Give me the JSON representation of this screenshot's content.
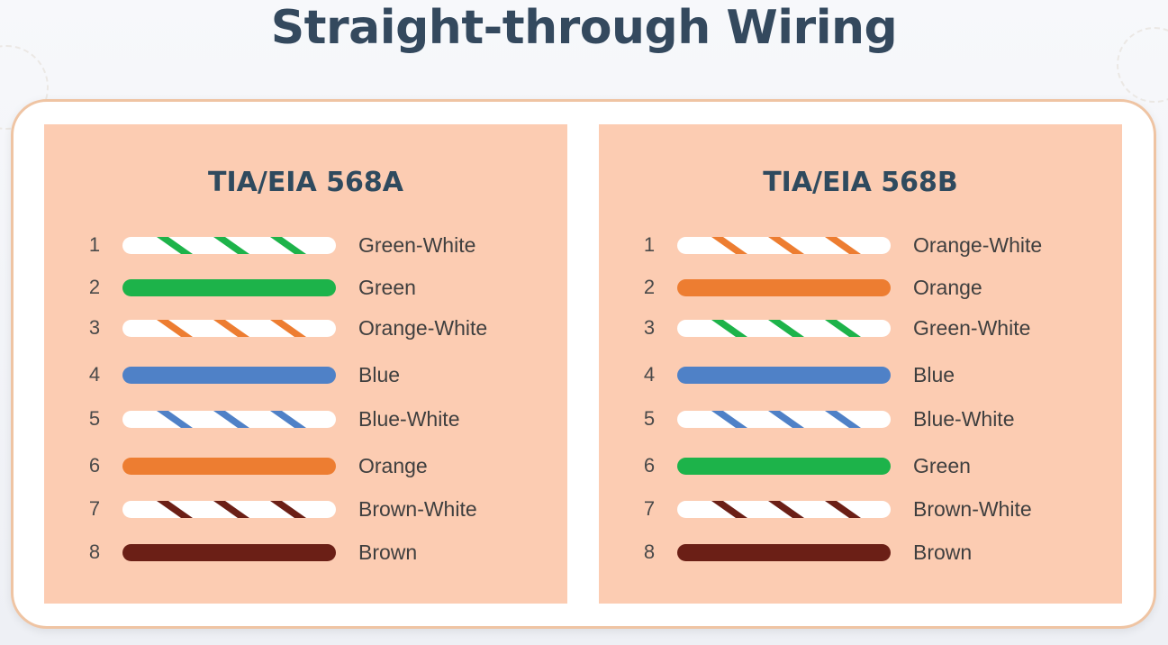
{
  "title": "Straight-through Wiring",
  "colors": {
    "green": "#1db34a",
    "orange": "#ed7d31",
    "blue": "#4f81c7",
    "brown": "#6b1f16",
    "white": "#ffffff",
    "panel": "#fcccb2"
  },
  "standards": [
    {
      "name": "TIA/EIA 568A",
      "pins": [
        {
          "pin": "1",
          "label": "Green-White",
          "color": "green",
          "striped": true
        },
        {
          "pin": "2",
          "label": "Green",
          "color": "green",
          "striped": false
        },
        {
          "pin": "3",
          "label": "Orange-White",
          "color": "orange",
          "striped": true
        },
        {
          "pin": "4",
          "label": "Blue",
          "color": "blue",
          "striped": false
        },
        {
          "pin": "5",
          "label": "Blue-White",
          "color": "blue",
          "striped": true
        },
        {
          "pin": "6",
          "label": "Orange",
          "color": "orange",
          "striped": false
        },
        {
          "pin": "7",
          "label": "Brown-White",
          "color": "brown",
          "striped": true
        },
        {
          "pin": "8",
          "label": "Brown",
          "color": "brown",
          "striped": false
        }
      ]
    },
    {
      "name": "TIA/EIA 568B",
      "pins": [
        {
          "pin": "1",
          "label": "Orange-White",
          "color": "orange",
          "striped": true
        },
        {
          "pin": "2",
          "label": "Orange",
          "color": "orange",
          "striped": false
        },
        {
          "pin": "3",
          "label": "Green-White",
          "color": "green",
          "striped": true
        },
        {
          "pin": "4",
          "label": "Blue",
          "color": "blue",
          "striped": false
        },
        {
          "pin": "5",
          "label": "Blue-White",
          "color": "blue",
          "striped": true
        },
        {
          "pin": "6",
          "label": "Green",
          "color": "green",
          "striped": false
        },
        {
          "pin": "7",
          "label": "Brown-White",
          "color": "brown",
          "striped": true
        },
        {
          "pin": "8",
          "label": "Brown",
          "color": "brown",
          "striped": false
        }
      ]
    }
  ]
}
